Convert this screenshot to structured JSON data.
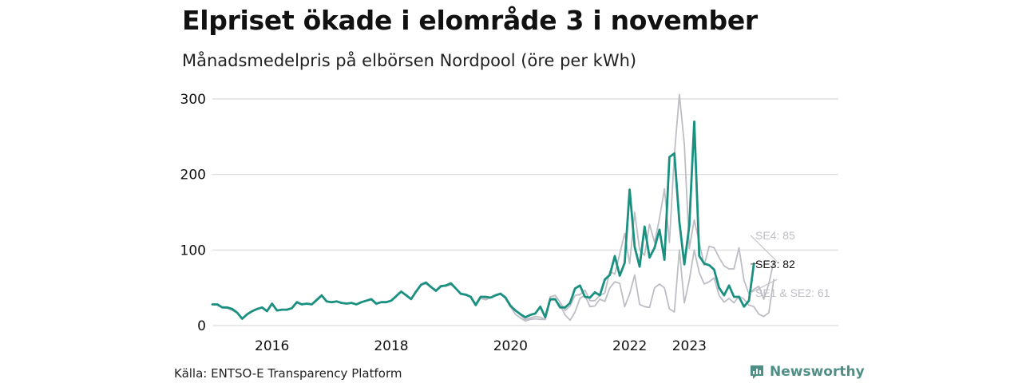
{
  "title": "Elpriset ökade i elområde 3 i november",
  "subtitle": "Månadsmedelpris på elbörsen Nordpool (öre per kWh)",
  "source": "Källa: ENTSO-E Transparency Platform",
  "brand": {
    "name": "Newsworthy",
    "icon": "bar-chart-icon"
  },
  "colors": {
    "main": "#1a9080",
    "other": "#bdbdc5",
    "grid": "#d9d9d9",
    "brand": "#4f8f85"
  },
  "chart_data": {
    "type": "line",
    "title": "Elpriset ökade i elområde 3 i november",
    "subtitle": "Månadsmedelpris på elbörsen Nordpool (öre per kWh)",
    "x_start": 2015.0,
    "x_step": 0.08333,
    "xlim": [
      2015.0,
      2025.5
    ],
    "ylim": [
      0,
      300
    ],
    "yticks": [
      0,
      100,
      200,
      300
    ],
    "xticks": [
      {
        "value": 2016,
        "label": "2016"
      },
      {
        "value": 2018,
        "label": "2018"
      },
      {
        "value": 2020,
        "label": "2020"
      },
      {
        "value": 2022,
        "label": "2022"
      },
      {
        "value": 2023,
        "label": "2023"
      }
    ],
    "grid": true,
    "series": [
      {
        "name": "SE4",
        "label": "SE4: 85",
        "emphasis": false,
        "values": [
          28,
          27,
          24,
          23,
          20,
          17,
          10,
          15,
          19,
          22,
          24,
          20,
          28,
          20,
          21,
          21,
          23,
          30,
          28,
          29,
          28,
          33,
          39,
          32,
          31,
          32,
          30,
          29,
          30,
          28,
          31,
          33,
          34,
          28,
          31,
          31,
          33,
          39,
          45,
          41,
          35,
          45,
          54,
          55,
          51,
          47,
          53,
          52,
          54,
          49,
          42,
          40,
          38,
          29,
          38,
          36,
          37,
          41,
          43,
          38,
          28,
          20,
          14,
          8,
          10,
          12,
          11,
          8,
          38,
          40,
          31,
          20,
          26,
          40,
          41,
          47,
          33,
          33,
          40,
          43,
          72,
          68,
          95,
          122,
          82,
          150,
          100,
          93,
          134,
          110,
          142,
          181,
          110,
          226,
          306,
          240,
          102,
          140,
          110,
          80,
          105,
          103,
          90,
          79,
          75,
          75,
          103,
          60,
          42,
          48,
          52,
          35,
          55,
          85
        ]
      },
      {
        "name": "SE1 & SE2",
        "label": "SE1 & SE2: 61",
        "emphasis": false,
        "values": [
          28,
          27,
          24,
          23,
          20,
          17,
          10,
          15,
          19,
          22,
          24,
          20,
          28,
          20,
          21,
          21,
          23,
          30,
          28,
          29,
          28,
          33,
          39,
          32,
          31,
          32,
          30,
          29,
          30,
          28,
          31,
          33,
          34,
          28,
          31,
          31,
          33,
          39,
          45,
          41,
          35,
          45,
          54,
          55,
          51,
          47,
          53,
          52,
          54,
          49,
          42,
          40,
          38,
          29,
          36,
          34,
          37,
          40,
          42,
          36,
          25,
          15,
          10,
          6,
          8,
          9,
          8,
          8,
          33,
          34,
          27,
          14,
          7,
          18,
          36,
          40,
          25,
          26,
          35,
          32,
          50,
          58,
          56,
          25,
          42,
          67,
          28,
          25,
          24,
          50,
          55,
          50,
          22,
          18,
          100,
          30,
          60,
          100,
          70,
          55,
          58,
          63,
          40,
          31,
          36,
          30,
          39,
          35,
          27,
          25,
          15,
          12,
          17,
          61
        ]
      },
      {
        "name": "SE3",
        "label": "SE3: 82",
        "emphasis": true,
        "values": [
          28,
          28,
          24,
          24,
          22,
          17,
          9,
          15,
          19,
          22,
          24,
          19,
          29,
          20,
          21,
          21,
          23,
          31,
          28,
          29,
          28,
          34,
          40,
          32,
          31,
          32,
          30,
          29,
          30,
          28,
          31,
          33,
          35,
          29,
          31,
          31,
          33,
          39,
          45,
          40,
          35,
          45,
          54,
          57,
          51,
          46,
          52,
          53,
          56,
          49,
          42,
          41,
          38,
          27,
          38,
          38,
          37,
          40,
          42,
          37,
          26,
          20,
          15,
          11,
          14,
          16,
          25,
          11,
          35,
          35,
          24,
          24,
          30,
          49,
          53,
          38,
          37,
          44,
          40,
          61,
          67,
          92,
          66,
          83,
          180,
          104,
          78,
          131,
          90,
          103,
          127,
          87,
          223,
          228,
          137,
          81,
          132,
          270,
          92,
          82,
          80,
          74,
          50,
          40,
          53,
          38,
          38,
          25,
          33,
          82
        ]
      }
    ]
  }
}
